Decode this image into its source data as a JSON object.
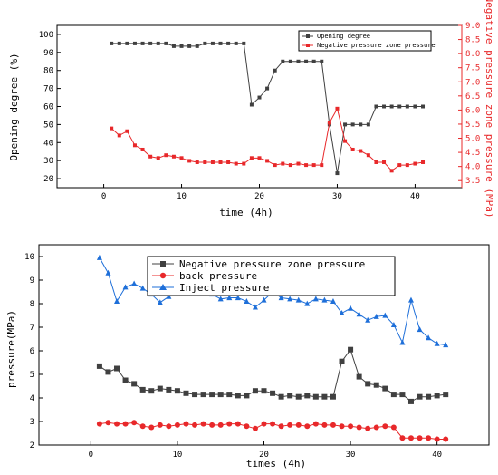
{
  "chart_data": [
    {
      "type": "line",
      "xlabel": "time (4h)",
      "ylabel": "Opening degree (%)",
      "y2label": "Negative pressure zone pressure (MPa)",
      "xlim": [
        -6,
        46
      ],
      "ylim": [
        15,
        105
      ],
      "y2lim": [
        3.25,
        9.0
      ],
      "xticks": [
        0,
        10,
        20,
        30,
        40
      ],
      "yticks": [
        20,
        30,
        40,
        50,
        60,
        70,
        80,
        90,
        100
      ],
      "y2ticks": [
        3.5,
        4.0,
        4.5,
        5.0,
        5.5,
        6.0,
        6.5,
        7.0,
        7.5,
        8.0,
        8.5,
        9.0
      ],
      "legend_position": "top-right",
      "grid": false,
      "series": [
        {
          "name": "Opening degree",
          "axis": "left",
          "color": "#404040",
          "marker": "square",
          "x": [
            1,
            2,
            3,
            4,
            5,
            6,
            7,
            8,
            9,
            10,
            11,
            12,
            13,
            14,
            15,
            16,
            17,
            18,
            19,
            20,
            21,
            22,
            23,
            24,
            25,
            26,
            27,
            28,
            29,
            30,
            31,
            32,
            33,
            34,
            35,
            36,
            37,
            38,
            39,
            40,
            41
          ],
          "values": [
            95,
            95,
            95,
            95,
            95,
            95,
            95,
            95,
            93.5,
            93.5,
            93.5,
            93.5,
            95,
            95,
            95,
            95,
            95,
            95,
            61,
            65,
            70,
            80,
            85,
            85,
            85,
            85,
            85,
            85,
            50,
            23,
            50,
            50,
            50,
            50,
            60,
            60,
            60,
            60,
            60,
            60,
            60
          ]
        },
        {
          "name": "Negative pressure zone pressure",
          "axis": "right",
          "color": "#e8282a",
          "marker": "square",
          "x": [
            1,
            2,
            3,
            4,
            5,
            6,
            7,
            8,
            9,
            10,
            11,
            12,
            13,
            14,
            15,
            16,
            17,
            18,
            19,
            20,
            21,
            22,
            23,
            24,
            25,
            26,
            27,
            28,
            29,
            30,
            31,
            32,
            33,
            34,
            35,
            36,
            37,
            38,
            39,
            40,
            41
          ],
          "values": [
            5.35,
            5.1,
            5.25,
            4.75,
            4.6,
            4.35,
            4.3,
            4.4,
            4.35,
            4.3,
            4.2,
            4.15,
            4.15,
            4.15,
            4.15,
            4.15,
            4.1,
            4.1,
            4.3,
            4.3,
            4.2,
            4.05,
            4.1,
            4.05,
            4.1,
            4.05,
            4.05,
            4.05,
            5.55,
            6.05,
            4.9,
            4.6,
            4.55,
            4.4,
            4.15,
            4.15,
            3.85,
            4.05,
            4.05,
            4.1,
            4.15
          ]
        }
      ]
    },
    {
      "type": "line",
      "xlabel": "times (4h)",
      "ylabel": "pressure(MPa)",
      "xlim": [
        -6,
        46
      ],
      "ylim": [
        2,
        10.5
      ],
      "xticks": [
        0,
        10,
        20,
        30,
        40
      ],
      "yticks": [
        2,
        3,
        4,
        5,
        6,
        7,
        8,
        9,
        10
      ],
      "legend_position": "top-center",
      "grid": false,
      "series": [
        {
          "name": "Negative pressure zone pressure",
          "color": "#404040",
          "marker": "square",
          "x": [
            1,
            2,
            3,
            4,
            5,
            6,
            7,
            8,
            9,
            10,
            11,
            12,
            13,
            14,
            15,
            16,
            17,
            18,
            19,
            20,
            21,
            22,
            23,
            24,
            25,
            26,
            27,
            28,
            29,
            30,
            31,
            32,
            33,
            34,
            35,
            36,
            37,
            38,
            39,
            40,
            41
          ],
          "values": [
            5.35,
            5.1,
            5.25,
            4.75,
            4.6,
            4.35,
            4.3,
            4.4,
            4.35,
            4.3,
            4.2,
            4.15,
            4.15,
            4.15,
            4.15,
            4.15,
            4.1,
            4.1,
            4.3,
            4.3,
            4.2,
            4.05,
            4.1,
            4.05,
            4.1,
            4.05,
            4.05,
            4.05,
            5.55,
            6.05,
            4.9,
            4.6,
            4.55,
            4.4,
            4.15,
            4.15,
            3.85,
            4.05,
            4.05,
            4.1,
            4.15
          ]
        },
        {
          "name": "back pressure",
          "color": "#e8282a",
          "marker": "circle",
          "x": [
            1,
            2,
            3,
            4,
            5,
            6,
            7,
            8,
            9,
            10,
            11,
            12,
            13,
            14,
            15,
            16,
            17,
            18,
            19,
            20,
            21,
            22,
            23,
            24,
            25,
            26,
            27,
            28,
            29,
            30,
            31,
            32,
            33,
            34,
            35,
            36,
            37,
            38,
            39,
            40,
            41
          ],
          "values": [
            2.9,
            2.95,
            2.9,
            2.9,
            2.95,
            2.8,
            2.75,
            2.85,
            2.8,
            2.85,
            2.9,
            2.85,
            2.9,
            2.85,
            2.85,
            2.9,
            2.9,
            2.8,
            2.7,
            2.9,
            2.9,
            2.8,
            2.85,
            2.85,
            2.8,
            2.9,
            2.85,
            2.85,
            2.8,
            2.8,
            2.75,
            2.7,
            2.75,
            2.8,
            2.75,
            2.3,
            2.3,
            2.3,
            2.3,
            2.25,
            2.25
          ]
        },
        {
          "name": "Inject pressure",
          "color": "#1e6fd9",
          "marker": "triangle",
          "x": [
            1,
            2,
            3,
            4,
            5,
            6,
            7,
            8,
            9,
            10,
            11,
            12,
            13,
            14,
            15,
            16,
            17,
            18,
            19,
            20,
            21,
            22,
            23,
            24,
            25,
            26,
            27,
            28,
            29,
            30,
            31,
            32,
            33,
            34,
            35,
            36,
            37,
            38,
            39,
            40,
            41
          ],
          "values": [
            9.95,
            9.3,
            8.1,
            8.7,
            8.85,
            8.65,
            8.4,
            8.05,
            8.3,
            8.55,
            8.6,
            8.5,
            8.45,
            8.4,
            8.2,
            8.25,
            8.25,
            8.1,
            7.85,
            8.15,
            8.5,
            8.25,
            8.2,
            8.15,
            8.0,
            8.2,
            8.15,
            8.1,
            7.6,
            7.8,
            7.55,
            7.3,
            7.45,
            7.5,
            7.1,
            6.35,
            8.15,
            6.9,
            6.55,
            6.3,
            6.25
          ]
        }
      ]
    }
  ]
}
